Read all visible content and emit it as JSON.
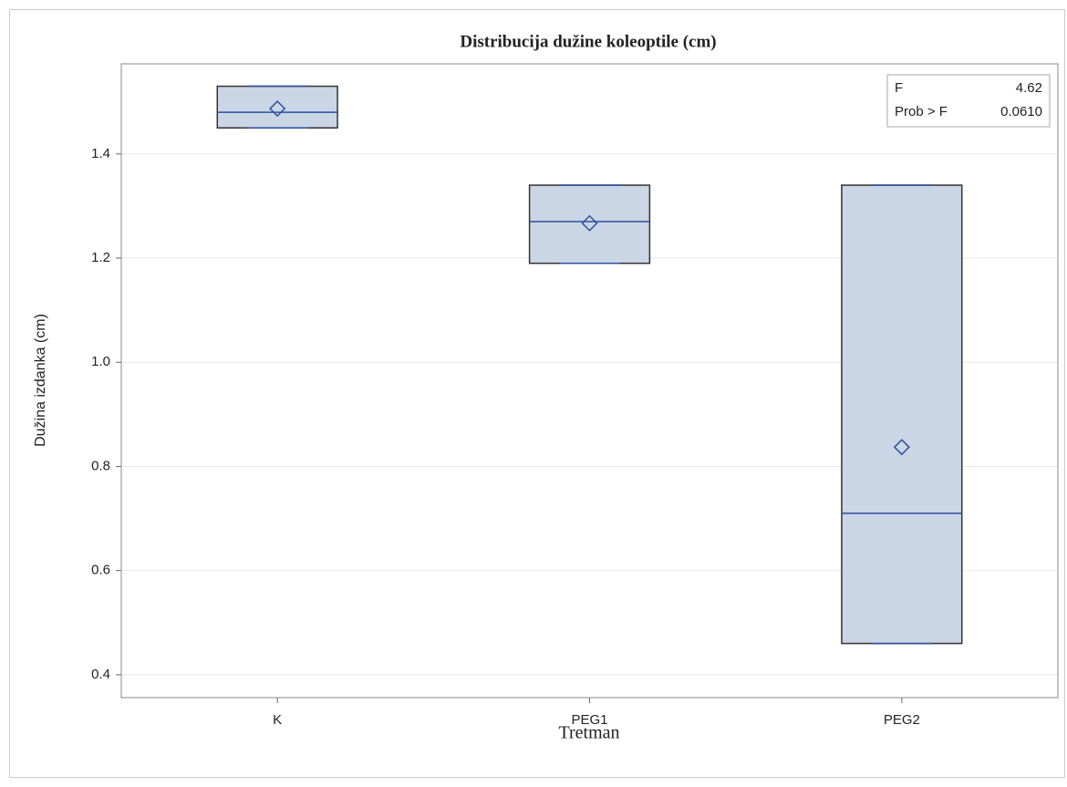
{
  "chart_data": {
    "type": "box",
    "title": "Distribucija dužine koleoptile (cm)",
    "x_label": "Tretman",
    "y_label": "Dužina izdanka (cm)",
    "categories": [
      "K",
      "PEG1",
      "PEG2"
    ],
    "min": [
      1.45,
      1.19,
      0.46
    ],
    "q1": [
      1.45,
      1.19,
      0.46
    ],
    "median": [
      1.48,
      1.27,
      0.71
    ],
    "q3": [
      1.53,
      1.34,
      1.34
    ],
    "max": [
      1.53,
      1.34,
      1.34
    ],
    "mean": [
      1.487,
      1.267,
      0.837
    ],
    "color": "#cad5e5",
    "line_color": "#2e4f9f",
    "ylim": [
      0.356,
      1.573
    ],
    "yticks": [
      0.4,
      0.6,
      0.8,
      {
        "value": 1,
        "label": "1.0"
      },
      1.2,
      1.4
    ],
    "grid": true,
    "inset": {
      "labels": [
        "F",
        "Prob > F"
      ],
      "values": [
        4.62,
        0.061
      ],
      "value_labels": [
        "4.62",
        "0.0610"
      ]
    }
  }
}
